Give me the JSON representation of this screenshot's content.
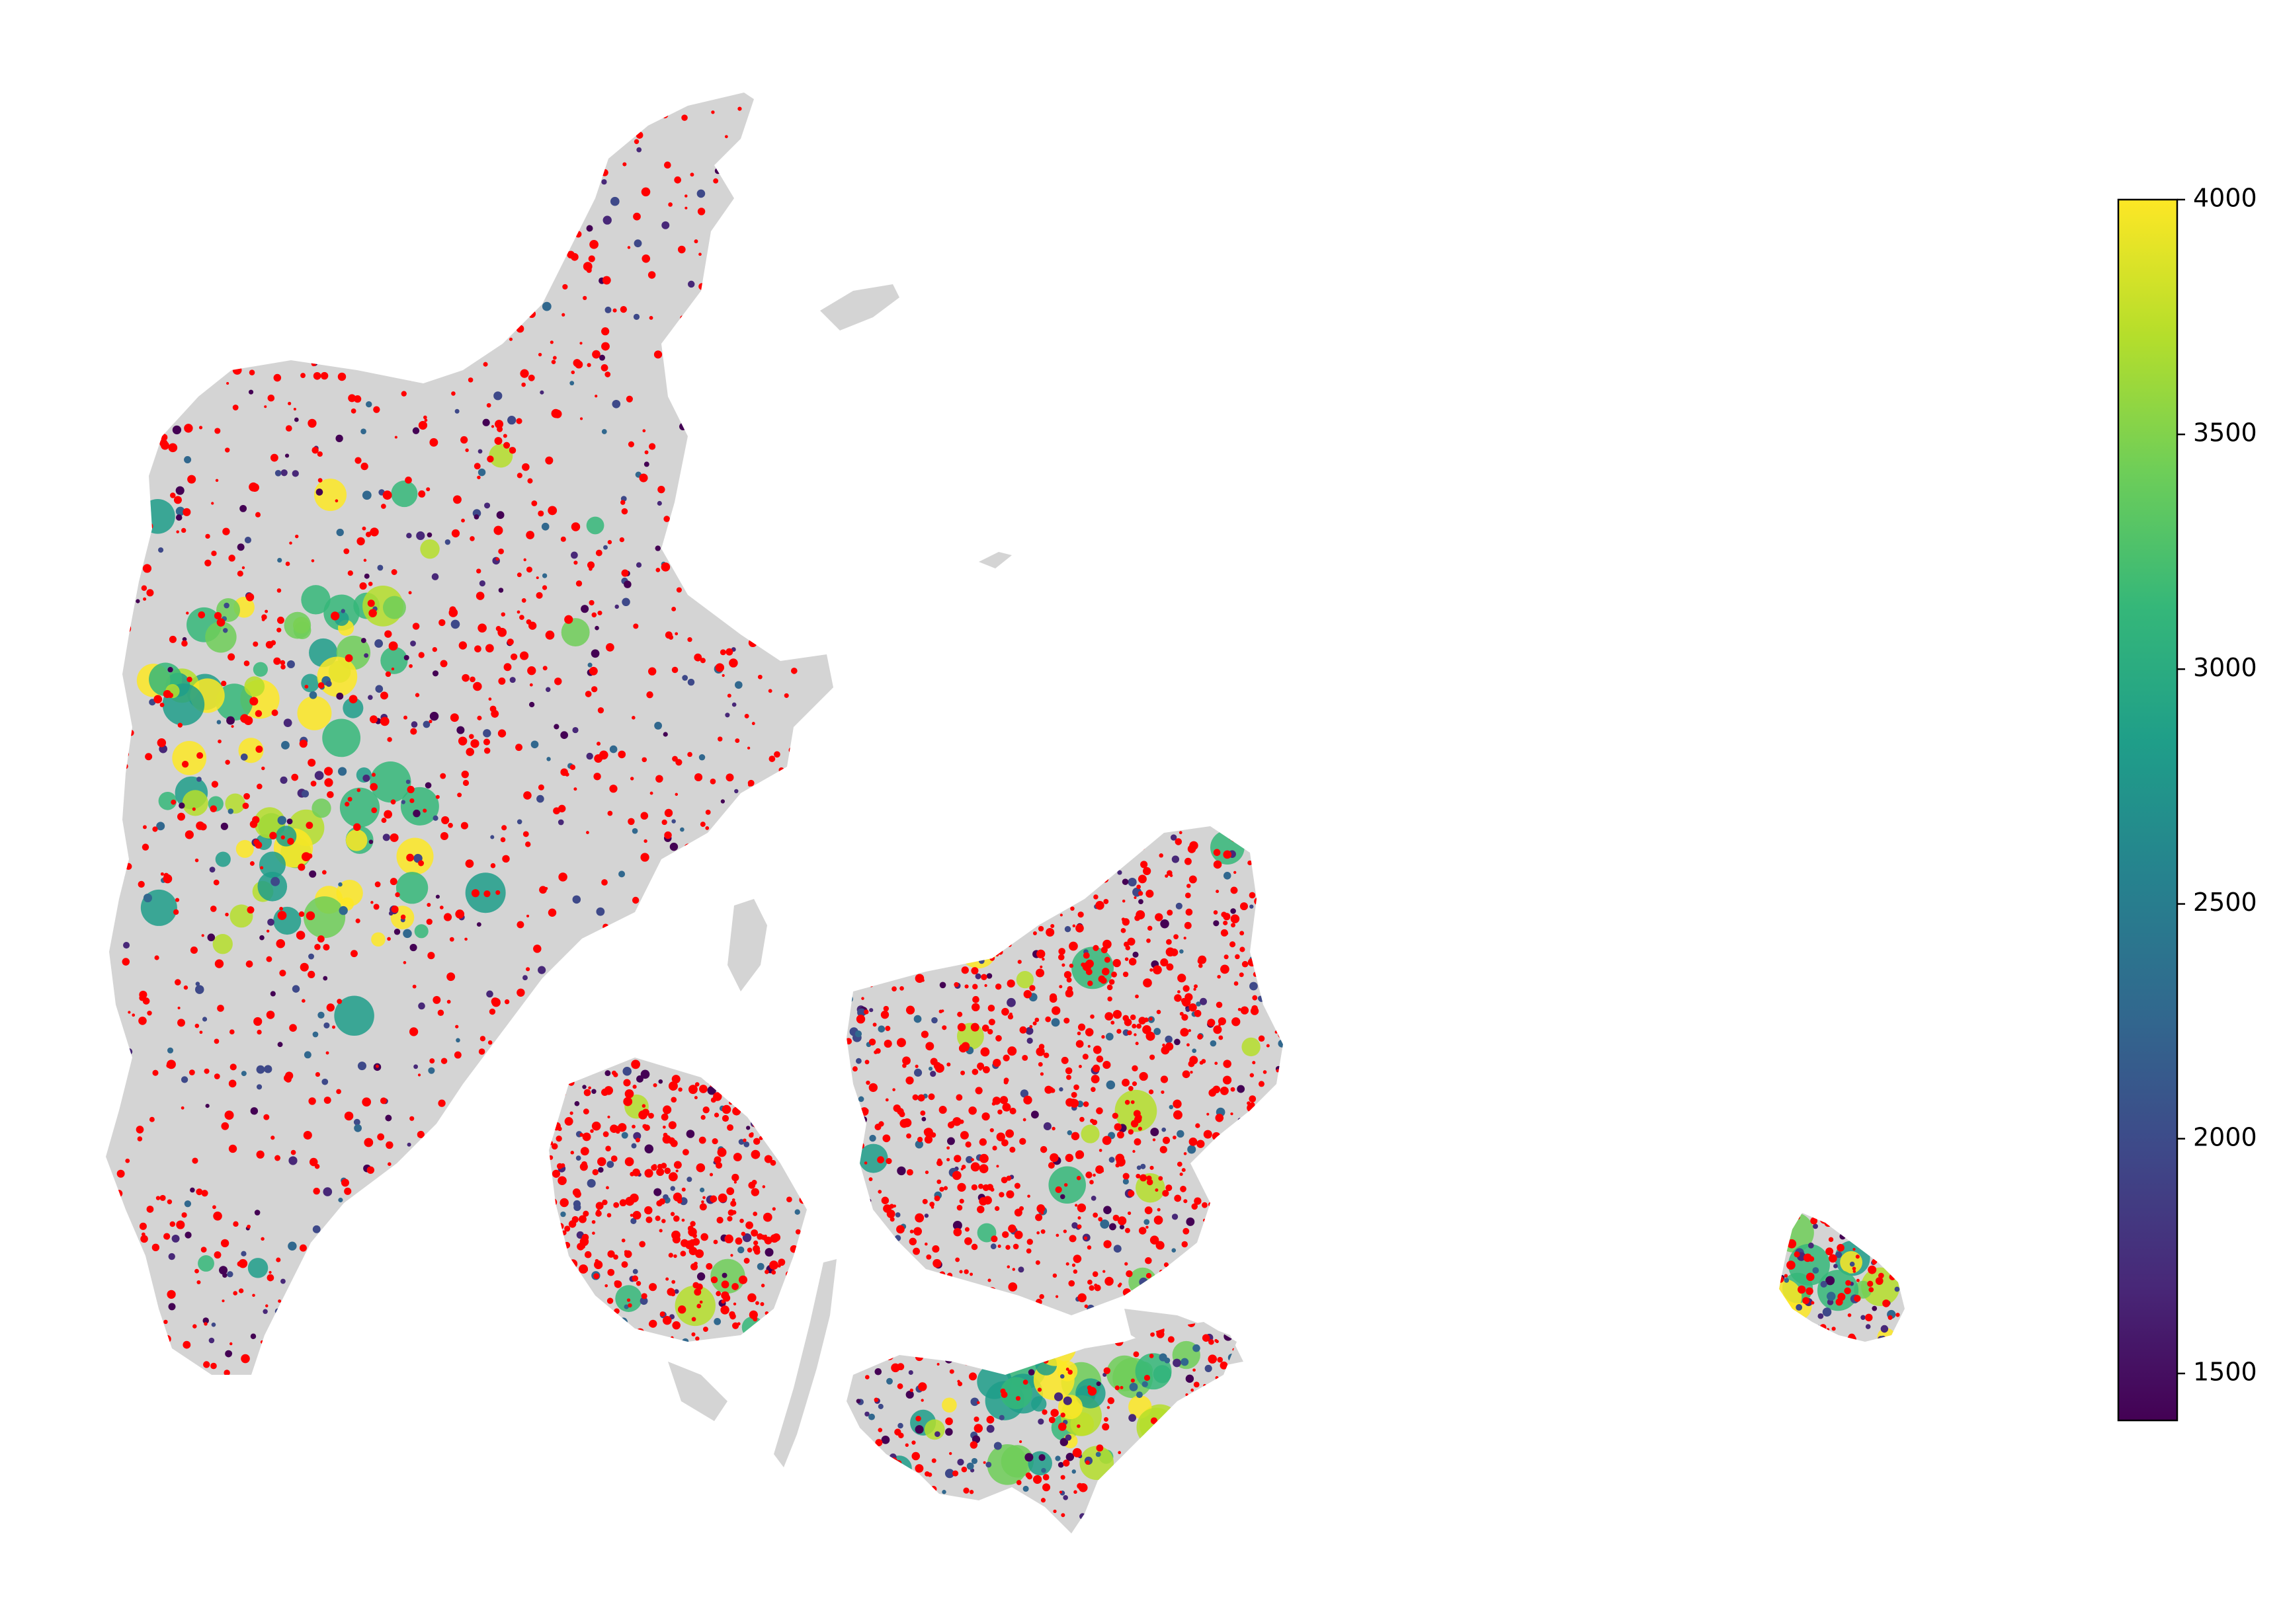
{
  "map": {
    "land_color": "#d4d4d4",
    "point_color": "#ff0000",
    "regions": [
      "jutland",
      "vendsyssel",
      "funen",
      "zealand",
      "lolland-falster",
      "bornholm",
      "small-islands"
    ]
  },
  "colorbar": {
    "colormap": "viridis",
    "min": 1400,
    "max": 4000,
    "ticks": [
      {
        "value": 1500,
        "label": "1500"
      },
      {
        "value": 2000,
        "label": "2000"
      },
      {
        "value": 2500,
        "label": "2500"
      },
      {
        "value": 3000,
        "label": "3000"
      },
      {
        "value": 3500,
        "label": "3500"
      },
      {
        "value": 4000,
        "label": "4000"
      }
    ],
    "stops": [
      "#440154",
      "#482878",
      "#3e4989",
      "#31688e",
      "#26828e",
      "#1f9e89",
      "#35b779",
      "#6ece58",
      "#b5de2b",
      "#fde725"
    ]
  }
}
